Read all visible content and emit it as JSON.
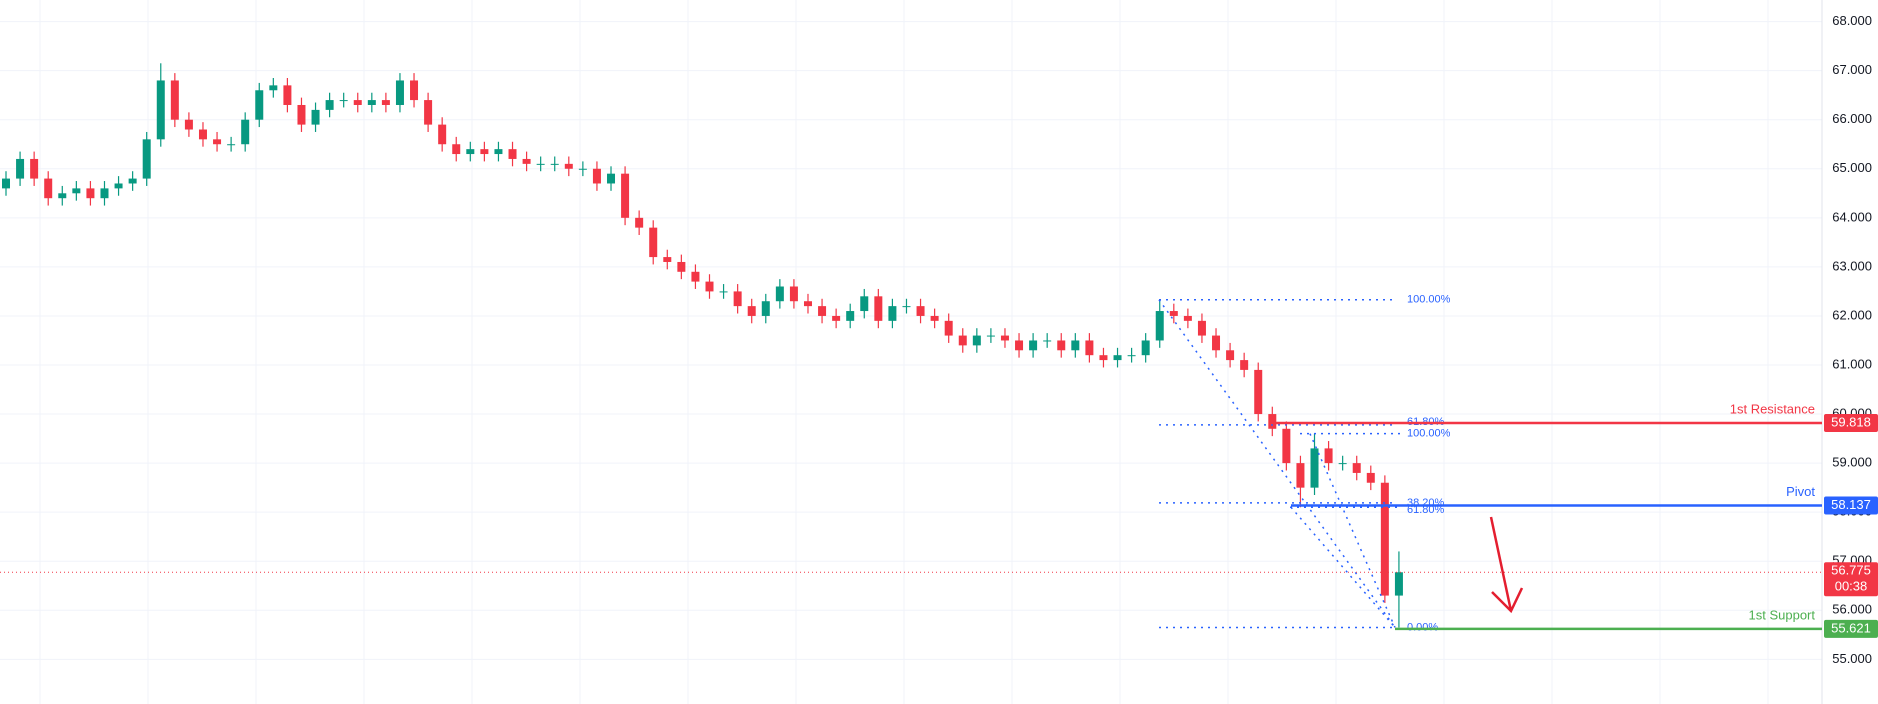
{
  "chart_data": {
    "type": "candlestick",
    "up_color": "#089981",
    "down_color": "#f23645",
    "open": [
      64.6,
      64.8,
      65.2,
      64.8,
      64.4,
      64.5,
      64.6,
      64.4,
      64.6,
      64.7,
      64.8,
      65.6,
      66.8,
      66.0,
      65.8,
      65.6,
      65.5,
      65.5,
      66.0,
      66.6,
      66.7,
      66.3,
      65.9,
      66.2,
      66.4,
      66.4,
      66.3,
      66.4,
      66.3,
      66.8,
      66.4,
      65.9,
      65.5,
      65.3,
      65.4,
      65.3,
      65.4,
      65.2,
      65.1,
      65.1,
      65.1,
      65.0,
      65.0,
      64.7,
      64.9,
      64.0,
      63.8,
      63.2,
      63.1,
      62.9,
      62.7,
      62.5,
      62.5,
      62.2,
      62.0,
      62.3,
      62.6,
      62.3,
      62.2,
      62.0,
      61.9,
      62.1,
      62.4,
      61.9,
      62.2,
      62.2,
      62.0,
      61.9,
      61.6,
      61.4,
      61.6,
      61.6,
      61.5,
      61.3,
      61.5,
      61.5,
      61.3,
      61.5,
      61.2,
      61.1,
      61.2,
      61.2,
      61.5,
      62.1,
      62.0,
      61.9,
      61.6,
      61.3,
      61.1,
      60.9,
      60.0,
      59.7,
      59.0,
      58.5,
      59.3,
      59.0,
      59.0,
      58.8,
      58.6,
      56.3
    ],
    "high": [
      64.95,
      65.35,
      65.35,
      64.95,
      64.65,
      64.75,
      64.75,
      64.75,
      64.85,
      64.95,
      65.75,
      67.15,
      66.95,
      66.15,
      65.95,
      65.75,
      65.65,
      66.15,
      66.75,
      66.85,
      66.85,
      66.45,
      66.35,
      66.55,
      66.55,
      66.55,
      66.55,
      66.55,
      66.95,
      66.95,
      66.55,
      66.05,
      65.65,
      65.55,
      65.55,
      65.55,
      65.55,
      65.35,
      65.25,
      65.25,
      65.25,
      65.15,
      65.15,
      65.05,
      65.05,
      64.15,
      63.95,
      63.35,
      63.25,
      63.05,
      62.85,
      62.65,
      62.65,
      62.35,
      62.45,
      62.75,
      62.75,
      62.45,
      62.35,
      62.15,
      62.25,
      62.55,
      62.55,
      62.35,
      62.35,
      62.35,
      62.15,
      62.05,
      61.75,
      61.75,
      61.75,
      61.75,
      61.65,
      61.65,
      61.65,
      61.65,
      61.65,
      61.65,
      61.35,
      61.35,
      61.35,
      61.65,
      62.33,
      62.25,
      62.15,
      62.05,
      61.75,
      61.45,
      61.25,
      61.05,
      60.15,
      59.85,
      59.15,
      59.6,
      59.45,
      59.15,
      59.15,
      58.95,
      58.75,
      57.2
    ],
    "low": [
      64.45,
      64.65,
      64.65,
      64.25,
      64.25,
      64.35,
      64.25,
      64.25,
      64.45,
      64.55,
      64.65,
      65.45,
      65.85,
      65.65,
      65.45,
      65.35,
      65.35,
      65.35,
      65.85,
      66.45,
      66.15,
      65.75,
      65.75,
      66.05,
      66.25,
      66.15,
      66.15,
      66.15,
      66.15,
      66.25,
      65.75,
      65.35,
      65.15,
      65.15,
      65.15,
      65.15,
      65.05,
      64.95,
      64.95,
      64.95,
      64.85,
      64.85,
      64.55,
      64.55,
      63.85,
      63.65,
      63.05,
      62.95,
      62.75,
      62.55,
      62.35,
      62.35,
      62.05,
      61.85,
      61.85,
      62.15,
      62.15,
      62.05,
      61.85,
      61.75,
      61.75,
      61.95,
      61.75,
      61.75,
      62.05,
      61.85,
      61.75,
      61.45,
      61.25,
      61.25,
      61.45,
      61.35,
      61.15,
      61.15,
      61.35,
      61.15,
      61.15,
      61.05,
      60.95,
      60.95,
      61.05,
      61.05,
      61.35,
      61.85,
      61.75,
      61.45,
      61.15,
      60.95,
      60.75,
      59.85,
      59.55,
      58.85,
      58.1,
      58.35,
      58.85,
      58.85,
      58.65,
      58.45,
      56.15,
      55.65
    ],
    "close": [
      64.8,
      65.2,
      64.8,
      64.4,
      64.5,
      64.6,
      64.4,
      64.6,
      64.7,
      64.8,
      65.6,
      66.8,
      66.0,
      65.8,
      65.6,
      65.5,
      65.5,
      66.0,
      66.6,
      66.7,
      66.3,
      65.9,
      66.2,
      66.4,
      66.4,
      66.3,
      66.4,
      66.3,
      66.8,
      66.4,
      65.9,
      65.5,
      65.3,
      65.4,
      65.3,
      65.4,
      65.2,
      65.1,
      65.1,
      65.1,
      65.0,
      65.0,
      64.7,
      64.9,
      64.0,
      63.8,
      63.2,
      63.1,
      62.9,
      62.7,
      62.5,
      62.5,
      62.2,
      62.0,
      62.3,
      62.6,
      62.3,
      62.2,
      62.0,
      61.9,
      62.1,
      62.4,
      61.9,
      62.2,
      62.2,
      62.0,
      61.9,
      61.6,
      61.4,
      61.6,
      61.6,
      61.5,
      61.3,
      61.5,
      61.5,
      61.3,
      61.5,
      61.2,
      61.1,
      61.2,
      61.2,
      61.5,
      62.1,
      62.0,
      61.9,
      61.6,
      61.3,
      61.1,
      60.9,
      60.0,
      59.7,
      59.0,
      58.5,
      59.3,
      59.0,
      59.0,
      58.8,
      58.6,
      56.3,
      56.775
    ],
    "ylim": [
      54.09,
      68.44
    ],
    "yticks": [
      {
        "value": 55,
        "label": "55.000"
      },
      {
        "value": 56,
        "label": "56.000"
      },
      {
        "value": 57,
        "label": "57.000"
      },
      {
        "value": 58,
        "label": "58.000"
      },
      {
        "value": 59,
        "label": "59.000"
      },
      {
        "value": 60,
        "label": "60.000"
      },
      {
        "value": 61,
        "label": "61.000"
      },
      {
        "value": 62,
        "label": "62.000"
      },
      {
        "value": 63,
        "label": "63.000"
      },
      {
        "value": 64,
        "label": "64.000"
      },
      {
        "value": 65,
        "label": "65.000"
      },
      {
        "value": 66,
        "label": "66.000"
      },
      {
        "value": 67,
        "label": "67.000"
      },
      {
        "value": 68,
        "label": "68.000"
      }
    ],
    "grid": true,
    "levels": [
      {
        "name": "1st Resistance",
        "value": 59.818,
        "color": "#f23645"
      },
      {
        "name": "Pivot",
        "value": 58.137,
        "color": "#2962ff"
      },
      {
        "name": "1st Support",
        "value": 55.621,
        "color": "#4caf50"
      }
    ],
    "fibonacci": [
      {
        "label": "100.00%",
        "value": 62.33
      },
      {
        "label": "61.80%",
        "value": 59.78
      },
      {
        "label": "38.20%",
        "value": 58.19
      },
      {
        "label": "0.00%",
        "value": 55.65
      },
      {
        "label": "100.00%",
        "value": 59.6
      },
      {
        "label": "61.80%",
        "value": 58.1
      }
    ],
    "fib_color": "#2962ff",
    "last_price": {
      "value": 56.775,
      "countdown": "00:38",
      "color": "#f23645"
    }
  }
}
